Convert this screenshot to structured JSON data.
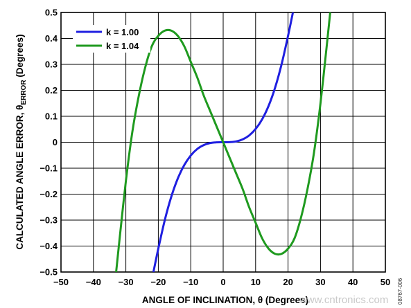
{
  "chart_data": {
    "type": "line",
    "title": "",
    "xlabel": "ANGLE OF INCLINATION, θ (Degrees)",
    "ylabel": "CALCULATED ANGLE ERROR, θ",
    "ylabel_subscript": "ERROR",
    "ylabel_suffix": " (Degrees)",
    "xlim": [
      -50,
      50
    ],
    "ylim": [
      -0.5,
      0.5
    ],
    "xticks": [
      -50,
      -40,
      -30,
      -20,
      -10,
      0,
      10,
      20,
      30,
      40,
      50
    ],
    "yticks": [
      0.5,
      0.4,
      0.3,
      0.2,
      0.1,
      0,
      -0.1,
      -0.2,
      -0.3,
      -0.4,
      -0.5
    ],
    "grid": true,
    "legend_position": "top-left",
    "series": [
      {
        "name": "k = 1.00",
        "color": "#1f1fe0",
        "x": [
          -21.5,
          -20,
          -18,
          -16,
          -14,
          -12,
          -10,
          -8,
          -6,
          -4,
          -2,
          0,
          2,
          4,
          6,
          8,
          10,
          12,
          14,
          16,
          18,
          20,
          21.5
        ],
        "y": [
          -0.5,
          -0.41,
          -0.3,
          -0.21,
          -0.14,
          -0.088,
          -0.051,
          -0.026,
          -0.011,
          -0.003,
          -0.0004,
          0,
          0.0004,
          0.003,
          0.011,
          0.026,
          0.051,
          0.088,
          0.14,
          0.21,
          0.3,
          0.41,
          0.5
        ]
      },
      {
        "name": "k = 1.04",
        "color": "#1f9a1f",
        "x": [
          -33,
          -32,
          -30,
          -28,
          -26,
          -24,
          -22,
          -20,
          -18,
          -16,
          -14,
          -12,
          -10,
          -8,
          -6,
          -4,
          -2,
          0,
          2,
          4,
          6,
          8,
          10,
          12,
          14,
          16,
          18,
          20,
          22,
          24,
          26,
          28,
          30,
          32,
          33
        ],
        "y": [
          -0.5,
          -0.38,
          -0.15,
          0.04,
          0.18,
          0.29,
          0.37,
          0.41,
          0.43,
          0.43,
          0.41,
          0.37,
          0.31,
          0.25,
          0.18,
          0.12,
          0.06,
          0,
          -0.06,
          -0.12,
          -0.18,
          -0.25,
          -0.31,
          -0.37,
          -0.41,
          -0.43,
          -0.43,
          -0.41,
          -0.37,
          -0.29,
          -0.18,
          -0.04,
          0.15,
          0.38,
          0.5
        ]
      }
    ]
  },
  "figure_id": "08767-006",
  "watermark": "www.cntronics.com"
}
